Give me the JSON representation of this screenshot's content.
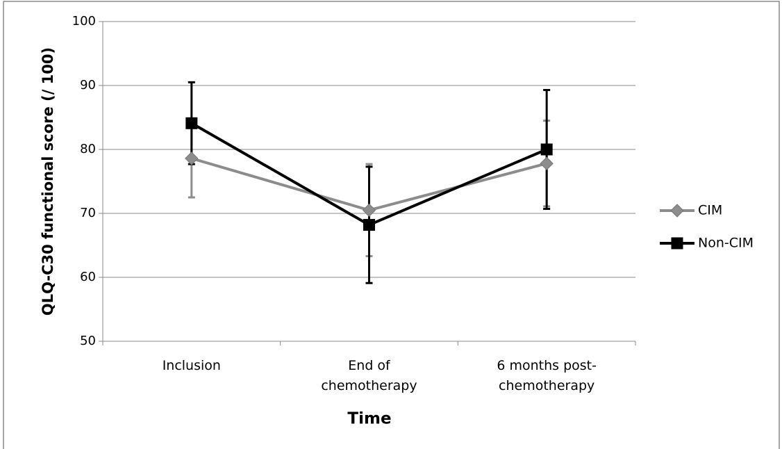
{
  "chart_data": {
    "type": "line",
    "y_label": "QLQ-C30  functional score (/ 100)",
    "x_label": "Time",
    "categories": [
      "Inclusion",
      "End of chemotherapy",
      "6 months post-chemotherapy"
    ],
    "series": [
      {
        "name": "CIM",
        "color": "#8c8c8c",
        "marker": "diamond",
        "values": [
          78.6,
          70.5,
          77.8
        ],
        "errors": [
          6.1,
          7.2,
          6.7
        ]
      },
      {
        "name": "Non-CIM",
        "color": "#000000",
        "marker": "square",
        "values": [
          84.1,
          68.2,
          80.0
        ],
        "errors": [
          6.4,
          9.1,
          9.3
        ]
      }
    ],
    "ylim": [
      50,
      100
    ],
    "yticks": [
      50,
      60,
      70,
      80,
      90,
      100
    ],
    "grid": true,
    "legend": "right"
  }
}
